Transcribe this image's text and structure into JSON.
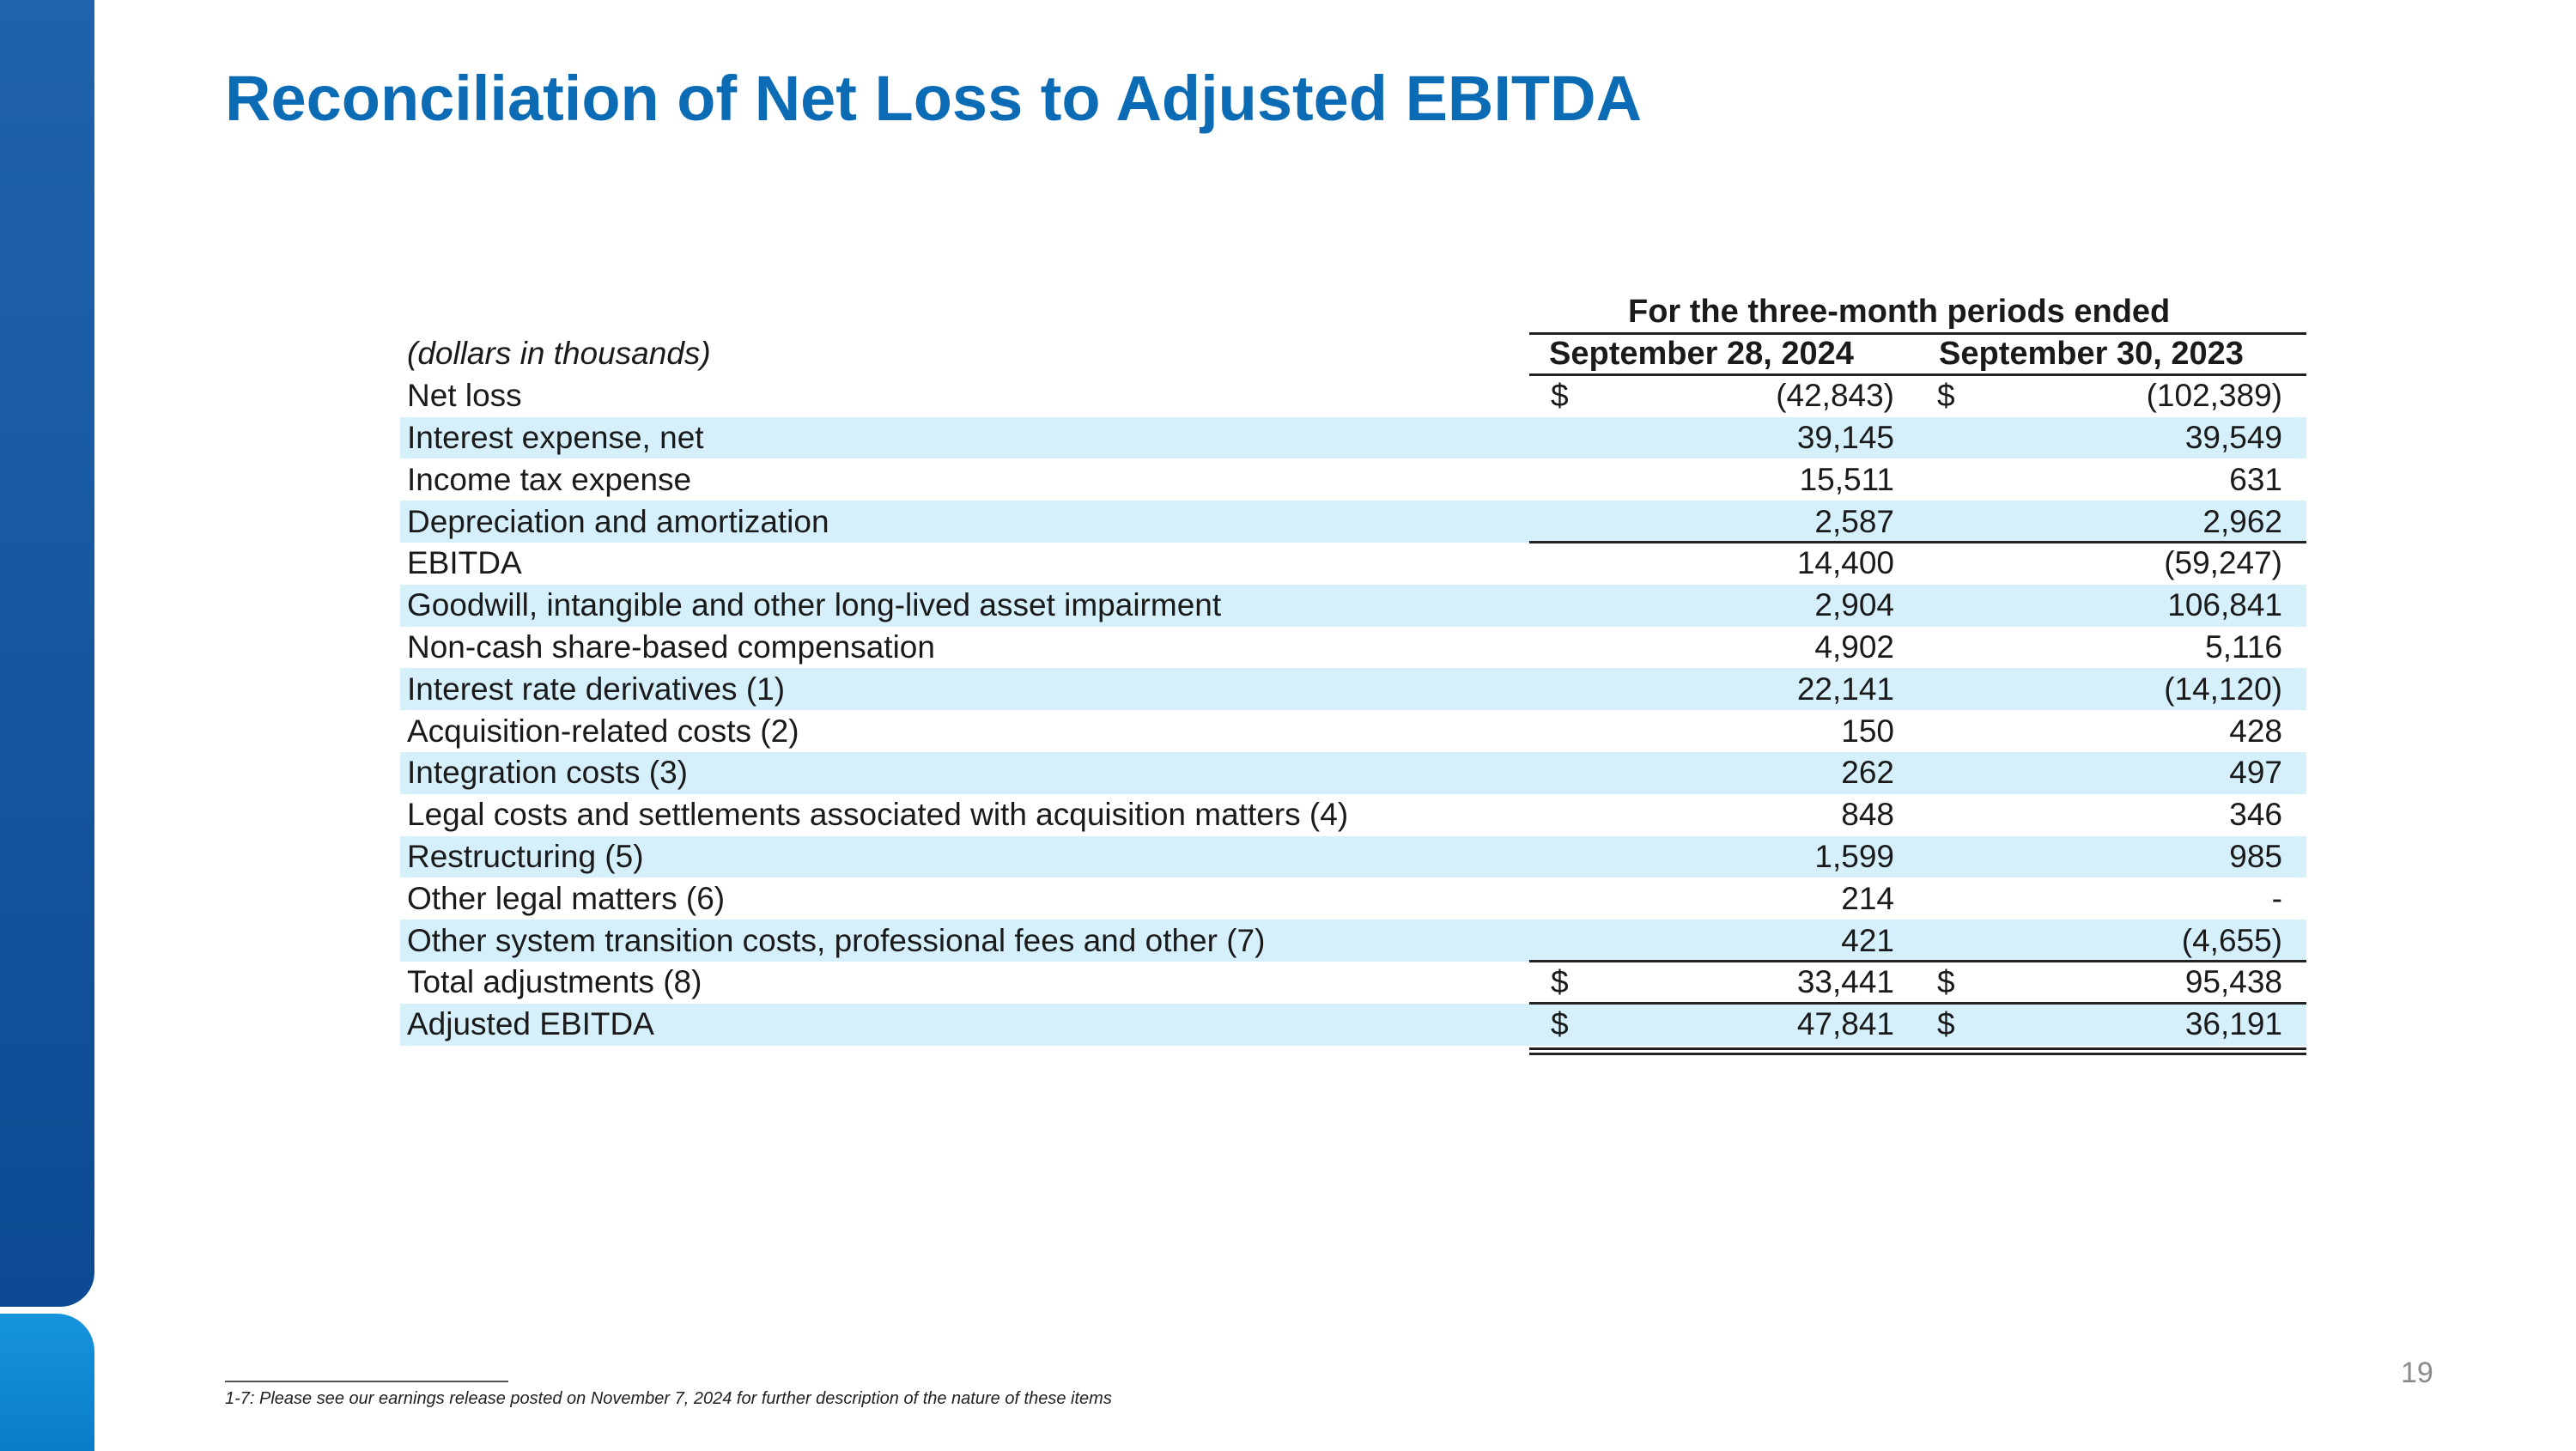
{
  "title": "Reconciliation of Net Loss to Adjusted EBITDA",
  "table": {
    "group_header": "For the three-month periods ended",
    "units_label": "(dollars in thousands)",
    "col1": "September 28, 2024",
    "col2": "September 30, 2023",
    "rows": [
      {
        "label": "Net loss",
        "d1": "$",
        "v1": "(42,843)",
        "d2": "$",
        "v2": "(102,389)"
      },
      {
        "label": "Interest expense, net",
        "d1": "",
        "v1": "39,145",
        "d2": "",
        "v2": "39,549"
      },
      {
        "label": "Income tax expense",
        "d1": "",
        "v1": "15,511",
        "d2": "",
        "v2": "631"
      },
      {
        "label": "Depreciation and amortization",
        "d1": "",
        "v1": "2,587",
        "d2": "",
        "v2": "2,962"
      },
      {
        "label": "EBITDA",
        "d1": "",
        "v1": "14,400",
        "d2": "",
        "v2": "(59,247)"
      },
      {
        "label": "Goodwill, intangible and other long-lived asset impairment",
        "d1": "",
        "v1": "2,904",
        "d2": "",
        "v2": "106,841"
      },
      {
        "label": "Non-cash share-based compensation",
        "d1": "",
        "v1": "4,902",
        "d2": "",
        "v2": "5,116"
      },
      {
        "label": "Interest rate derivatives (1)",
        "d1": "",
        "v1": "22,141",
        "d2": "",
        "v2": "(14,120)"
      },
      {
        "label": "Acquisition-related costs (2)",
        "d1": "",
        "v1": "150",
        "d2": "",
        "v2": "428"
      },
      {
        "label": "Integration costs (3)",
        "d1": "",
        "v1": "262",
        "d2": "",
        "v2": "497"
      },
      {
        "label": "Legal costs and settlements associated with acquisition matters (4)",
        "d1": "",
        "v1": "848",
        "d2": "",
        "v2": "346"
      },
      {
        "label": "Restructuring (5)",
        "d1": "",
        "v1": "1,599",
        "d2": "",
        "v2": "985"
      },
      {
        "label": "Other legal matters (6)",
        "d1": "",
        "v1": "214",
        "d2": "",
        "v2": "-"
      },
      {
        "label": "Other system transition costs, professional fees and other (7)",
        "d1": "",
        "v1": "421",
        "d2": "",
        "v2": "(4,655)"
      },
      {
        "label": "Total adjustments (8)",
        "d1": "$",
        "v1": "33,441",
        "d2": "$",
        "v2": "95,438"
      },
      {
        "label": "Adjusted EBITDA",
        "d1": "$",
        "v1": "47,841",
        "d2": "$",
        "v2": "36,191"
      }
    ]
  },
  "footnote": "1-7: Please see our earnings release posted on November 7, 2024 for further description of the nature of these items",
  "page_number": "19",
  "colors": {
    "title": "#0b6cb5",
    "row_shade": "#d6f0fb",
    "sidebar_top": "#1f63ac",
    "sidebar_bottom": "#1694dc"
  }
}
